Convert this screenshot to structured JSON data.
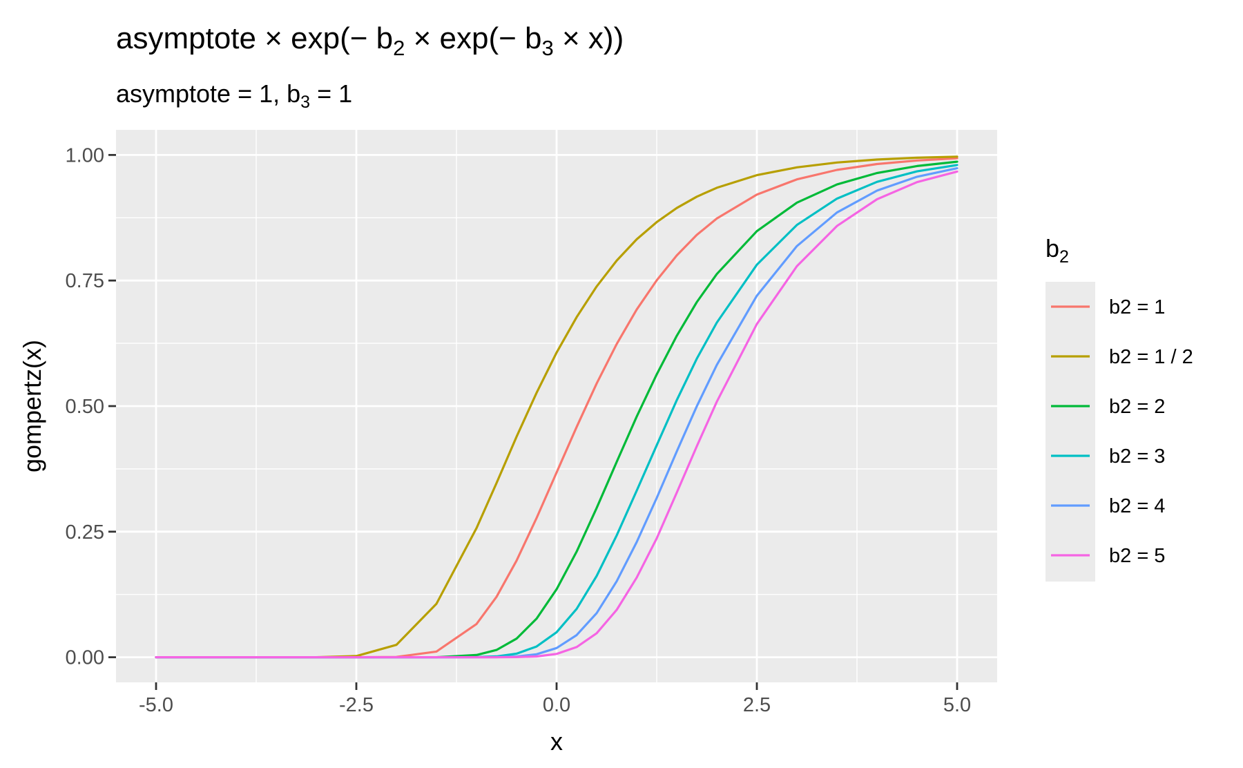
{
  "chart_data": {
    "type": "line",
    "title": {
      "text": "asymptote × exp(− b2 × exp(− b3 × x))",
      "parts": [
        "asymptote × exp(− b",
        "2",
        " × exp(− b",
        "3",
        " × x))"
      ]
    },
    "subtitle": {
      "text": "asymptote = 1, b3 = 1",
      "parts": [
        "asymptote = 1, b",
        "3",
        " = 1"
      ]
    },
    "xlabel": "x",
    "ylabel": "gompertz(x)",
    "xlim": [
      -5.5,
      5.5
    ],
    "ylim": [
      -0.05,
      1.05
    ],
    "x_ticks": [
      -5.0,
      -2.5,
      0.0,
      2.5,
      5.0
    ],
    "x_tick_labels": [
      "-5.0",
      "-2.5",
      "0.0",
      "2.5",
      "5.0"
    ],
    "y_ticks": [
      0.0,
      0.25,
      0.5,
      0.75,
      1.0
    ],
    "y_tick_labels": [
      "0.00",
      "0.25",
      "0.50",
      "0.75",
      "1.00"
    ],
    "grid": true,
    "legend": {
      "position": "right",
      "title_parts": [
        "b",
        "2"
      ],
      "entries": [
        "b2 = 1",
        "b2 = 1 / 2",
        "b2 = 2",
        "b2 = 3",
        "b2 = 4",
        "b2 = 5"
      ]
    },
    "x": [
      -5.0,
      -4.5,
      -4.0,
      -3.5,
      -3.0,
      -2.5,
      -2.0,
      -1.5,
      -1.0,
      -0.75,
      -0.5,
      -0.25,
      0.0,
      0.25,
      0.5,
      0.75,
      1.0,
      1.25,
      1.5,
      1.75,
      2.0,
      2.5,
      3.0,
      3.5,
      4.0,
      4.5,
      5.0
    ],
    "series": [
      {
        "name": "b2 = 1",
        "color": "#F8766D",
        "values": [
          0.0,
          0.0,
          0.0,
          0.0,
          0.0,
          0.0,
          0.0006,
          0.0113,
          0.066,
          0.1202,
          0.1923,
          0.2771,
          0.3679,
          0.4584,
          0.545,
          0.6235,
          0.6922,
          0.7504,
          0.7999,
          0.8408,
          0.8734,
          0.9211,
          0.9514,
          0.9702,
          0.9819,
          0.989,
          0.9933
        ]
      },
      {
        "name": "b2 = 1 / 2",
        "color": "#B79F00",
        "values": [
          0.0,
          0.0,
          0.0,
          0.0,
          0.0,
          0.0024,
          0.0247,
          0.1064,
          0.2569,
          0.3467,
          0.4389,
          0.5264,
          0.6065,
          0.677,
          0.7382,
          0.7896,
          0.832,
          0.8663,
          0.8943,
          0.9169,
          0.9346,
          0.9598,
          0.9754,
          0.985,
          0.9909,
          0.9945,
          0.9966
        ]
      },
      {
        "name": "b2 = 2",
        "color": "#00BA38",
        "values": [
          0.0,
          0.0,
          0.0,
          0.0,
          0.0,
          0.0,
          0.0,
          0.0001,
          0.0044,
          0.0145,
          0.037,
          0.0768,
          0.1353,
          0.2101,
          0.297,
          0.3888,
          0.4791,
          0.5631,
          0.6399,
          0.7069,
          0.7629,
          0.8483,
          0.9051,
          0.9413,
          0.964,
          0.978,
          0.9866
        ]
      },
      {
        "name": "b2 = 3",
        "color": "#00BFC4",
        "values": [
          0.0,
          0.0,
          0.0,
          0.0,
          0.0,
          0.0,
          0.0,
          0.0,
          0.0003,
          0.0017,
          0.0071,
          0.0213,
          0.0498,
          0.0962,
          0.1617,
          0.2424,
          0.3315,
          0.4221,
          0.5117,
          0.5943,
          0.6663,
          0.7814,
          0.8606,
          0.9131,
          0.9465,
          0.9673,
          0.98
        ]
      },
      {
        "name": "b2 = 4",
        "color": "#619CFF",
        "values": [
          0.0,
          0.0,
          0.0,
          0.0,
          0.0,
          0.0,
          0.0,
          0.0,
          0.0,
          0.0002,
          0.0014,
          0.0059,
          0.0183,
          0.0441,
          0.0878,
          0.1512,
          0.2293,
          0.3171,
          0.4097,
          0.4996,
          0.5819,
          0.7197,
          0.8186,
          0.8854,
          0.929,
          0.9566,
          0.9735
        ]
      },
      {
        "name": "b2 = 5",
        "color": "#F564E3",
        "values": [
          0.0,
          0.0,
          0.0,
          0.0,
          0.0,
          0.0,
          0.0,
          0.0,
          0.0,
          0.0,
          0.0003,
          0.0016,
          0.0067,
          0.0202,
          0.0477,
          0.0943,
          0.1586,
          0.2367,
          0.3276,
          0.42,
          0.5087,
          0.6633,
          0.7786,
          0.8586,
          0.9118,
          0.9459,
          0.9669
        ]
      }
    ]
  }
}
